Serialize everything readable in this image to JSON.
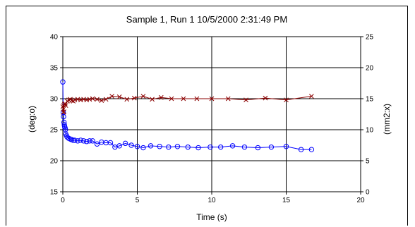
{
  "chart_data": {
    "type": "line",
    "title": "Sample 1, Run 1  10/5/2000 2:31:49 PM",
    "xlabel": "Time (s)",
    "ylabel_left": "(deg:o)",
    "ylabel_right": "(mm2:x)",
    "xlim": [
      0,
      20
    ],
    "ylim_left": [
      15,
      40
    ],
    "ylim_right": [
      0,
      25
    ],
    "x_ticks": [
      0,
      5,
      10,
      15,
      20
    ],
    "y_ticks_left": [
      15,
      20,
      25,
      30,
      35,
      40
    ],
    "y_ticks_right": [
      0,
      5,
      10,
      15,
      20,
      25
    ],
    "grid": true,
    "series": [
      {
        "axis": "left",
        "marker": "circle",
        "color": "#0000ff",
        "x": [
          0.0,
          0.03,
          0.05,
          0.08,
          0.1,
          0.12,
          0.15,
          0.18,
          0.2,
          0.25,
          0.3,
          0.4,
          0.5,
          0.6,
          0.7,
          0.8,
          1.0,
          1.2,
          1.4,
          1.6,
          1.8,
          2.0,
          2.3,
          2.6,
          2.9,
          3.2,
          3.5,
          3.8,
          4.2,
          4.6,
          5.0,
          5.4,
          5.9,
          6.5,
          7.1,
          7.7,
          8.4,
          9.1,
          9.9,
          10.6,
          11.4,
          12.2,
          13.1,
          14.0,
          15.0,
          16.0,
          16.7
        ],
        "values": [
          32.7,
          27.8,
          27.1,
          26.2,
          25.8,
          25.5,
          25.3,
          25.0,
          24.3,
          24.0,
          23.8,
          23.6,
          23.5,
          23.4,
          23.3,
          23.3,
          23.2,
          23.3,
          23.2,
          23.1,
          23.2,
          23.2,
          22.7,
          23.0,
          22.9,
          22.9,
          22.2,
          22.4,
          22.8,
          22.5,
          22.3,
          22.1,
          22.4,
          22.3,
          22.2,
          22.3,
          22.2,
          22.1,
          22.2,
          22.2,
          22.4,
          22.2,
          22.1,
          22.2,
          22.3,
          21.8,
          21.8
        ]
      },
      {
        "axis": "right",
        "marker": "x",
        "color": "#8b0000",
        "x": [
          0.0,
          0.03,
          0.05,
          0.08,
          0.1,
          0.15,
          0.2,
          0.3,
          0.4,
          0.5,
          0.6,
          0.7,
          0.8,
          1.0,
          1.2,
          1.4,
          1.6,
          1.8,
          2.0,
          2.3,
          2.6,
          2.9,
          3.3,
          3.8,
          4.3,
          4.8,
          5.4,
          6.0,
          6.6,
          7.3,
          8.1,
          9.0,
          10.0,
          11.1,
          12.3,
          13.6,
          15.0,
          16.7
        ],
        "values": [
          13.7,
          12.8,
          13.9,
          12.9,
          14.1,
          14.2,
          13.9,
          14.6,
          14.8,
          14.9,
          14.7,
          14.6,
          14.8,
          14.9,
          14.8,
          14.9,
          14.8,
          14.9,
          15.0,
          14.9,
          14.7,
          14.9,
          15.4,
          15.3,
          14.9,
          15.1,
          15.4,
          14.9,
          15.2,
          15.0,
          15.0,
          15.0,
          15.0,
          15.0,
          14.8,
          15.1,
          14.8,
          15.4
        ]
      }
    ]
  }
}
